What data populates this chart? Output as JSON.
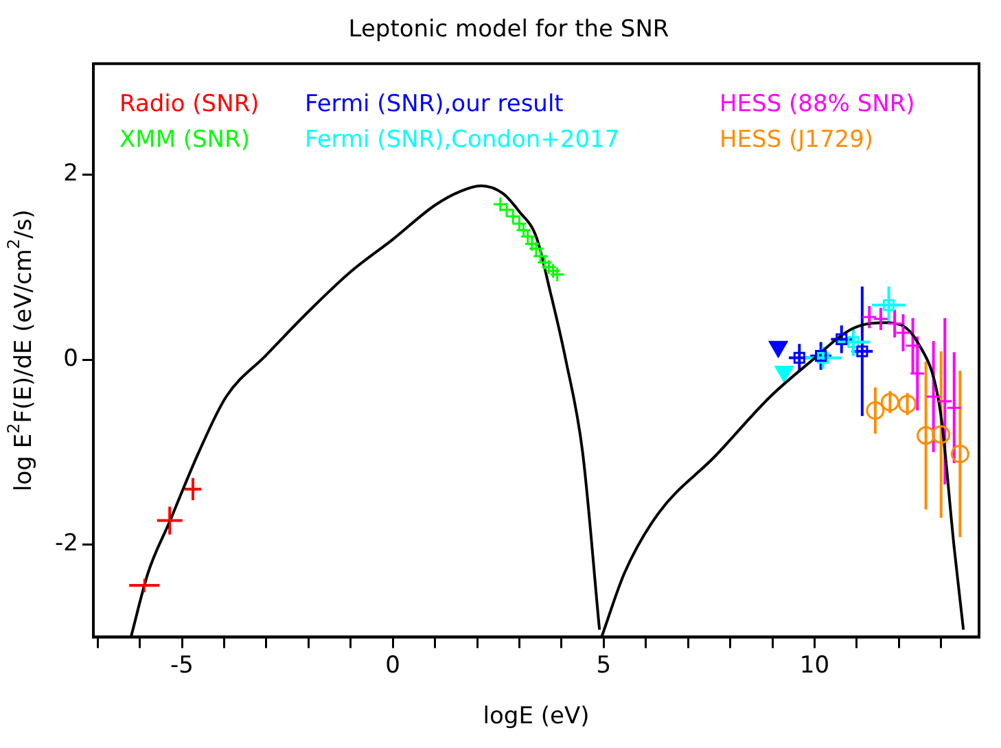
{
  "chart_data": {
    "type": "scatter",
    "title": "Leptonic model for the SNR",
    "xlabel": "logE (eV)",
    "ylabel": "log E$^{2}$F(E)/dE (eV/cm$^{2}$/s)",
    "xlim": [
      -7.1,
      13.9
    ],
    "xticks": [
      {
        "value": -7,
        "label": null
      },
      {
        "value": -6,
        "label": null
      },
      -5,
      {
        "value": -4,
        "label": null
      },
      {
        "value": -3,
        "label": null
      },
      {
        "value": -2,
        "label": null
      },
      {
        "value": -1,
        "label": null
      },
      0,
      {
        "value": 1,
        "label": null
      },
      {
        "value": 2,
        "label": null
      },
      {
        "value": 3,
        "label": null
      },
      {
        "value": 4,
        "label": null
      },
      5,
      {
        "value": 6,
        "label": null
      },
      {
        "value": 7,
        "label": null
      },
      {
        "value": 8,
        "label": null
      },
      {
        "value": 9,
        "label": null
      },
      10,
      {
        "value": 11,
        "label": null
      },
      {
        "value": 12,
        "label": null
      },
      {
        "value": 13,
        "label": null
      }
    ],
    "ylim": [
      -3,
      3.2
    ],
    "yticks": [
      -2,
      0,
      2
    ],
    "grid": false,
    "legend": "top",
    "series": [
      {
        "name": "Radio (SNR)",
        "color": "#ff0000",
        "marker": "cross",
        "x": [
          -5.89,
          -5.29,
          -4.74
        ],
        "values": [
          -2.44,
          -1.74,
          -1.4
        ],
        "xerrors": [
          0.36,
          0.3,
          0.2
        ],
        "errors": [
          null,
          0.15,
          0.12
        ]
      },
      {
        "name": "XMM (SNR)",
        "color": "#00ff00",
        "marker": "cross",
        "x": [
          2.55,
          2.7,
          2.85,
          3.0,
          3.1,
          3.2,
          3.3,
          3.4,
          3.5,
          3.6,
          3.7,
          3.8,
          3.9
        ],
        "values": [
          1.68,
          1.62,
          1.55,
          1.47,
          1.4,
          1.33,
          1.25,
          1.2,
          1.12,
          1.05,
          1.0,
          0.96,
          0.92
        ]
      },
      {
        "name": "Fermi (SNR),our result",
        "color": "#0000ff",
        "marker": "square",
        "x": [
          9.64,
          10.15,
          10.64,
          11.13
        ],
        "values": [
          0.02,
          0.04,
          0.22,
          0.09
        ],
        "xerrors": [
          0.25,
          0.25,
          0.25,
          0.25
        ],
        "errors": [
          0.15,
          0.15,
          0.15,
          0.7
        ]
      },
      {
        "name": "Fermi (SNR),Condon+2017",
        "color": "#00ffff",
        "marker": "square",
        "x": [
          10.2,
          10.92,
          11.76
        ],
        "values": [
          0.02,
          0.19,
          0.59
        ],
        "xerrors": [
          0.45,
          0.4,
          0.4
        ],
        "errors": [
          0.12,
          0.15,
          0.2
        ]
      },
      {
        "name": "HESS (88% SNR)",
        "color": "#ff00ff",
        "marker": "cross",
        "x": [
          11.3,
          11.57,
          11.9,
          12.1,
          12.33,
          12.44,
          12.82,
          13.09,
          13.31
        ],
        "values": [
          0.46,
          0.44,
          0.39,
          0.29,
          0.15,
          -0.15,
          -0.4,
          -0.45,
          -0.52
        ],
        "errors": [
          0.12,
          0.12,
          0.15,
          0.2,
          0.3,
          0.4,
          0.6,
          0.9,
          0.6
        ]
      },
      {
        "name": "HESS (J1729)",
        "color": "#ff8c00",
        "marker": "circle",
        "x": [
          11.44,
          11.79,
          12.2,
          12.64,
          13.0,
          13.45
        ],
        "values": [
          -0.55,
          -0.46,
          -0.48,
          -0.82,
          -0.81,
          -1.02
        ],
        "errors": [
          0.25,
          0.12,
          0.12,
          0.8,
          0.9,
          0.9
        ]
      },
      {
        "type": "line",
        "color": "#000000",
        "marker": "none",
        "x": [
          -6.21,
          -5.8,
          -5.29,
          -4.6,
          -3.95,
          -3.0,
          -2.0,
          -1.0,
          0.0,
          1.0,
          1.6,
          2.09,
          2.6,
          3.0,
          3.4,
          3.73,
          4.1,
          4.5,
          4.9
        ],
        "values": [
          -3,
          -2.3,
          -1.75,
          -1.0,
          -0.4,
          0.05,
          0.52,
          0.95,
          1.3,
          1.67,
          1.82,
          1.88,
          1.8,
          1.6,
          1.33,
          0.74,
          0.0,
          -1.0,
          -2.92
        ]
      },
      {
        "type": "line",
        "color": "#000000",
        "marker": "none",
        "x": [
          4.95,
          5.5,
          6.3,
          7.65,
          8.95,
          9.83,
          10.92,
          11.68,
          12.44,
          12.98,
          13.31,
          13.53
        ],
        "values": [
          -3,
          -2.3,
          -1.66,
          -1.04,
          -0.4,
          -0.05,
          0.34,
          0.4,
          0.19,
          -0.55,
          -2.03,
          -2.92
        ]
      },
      {
        "color": "#0000ff",
        "marker": "triangle",
        "x": [
          9.14
        ],
        "values": [
          0.14
        ]
      },
      {
        "color": "#00ffff",
        "marker": "triangle",
        "x": [
          9.28
        ],
        "values": [
          -0.13
        ]
      }
    ]
  }
}
